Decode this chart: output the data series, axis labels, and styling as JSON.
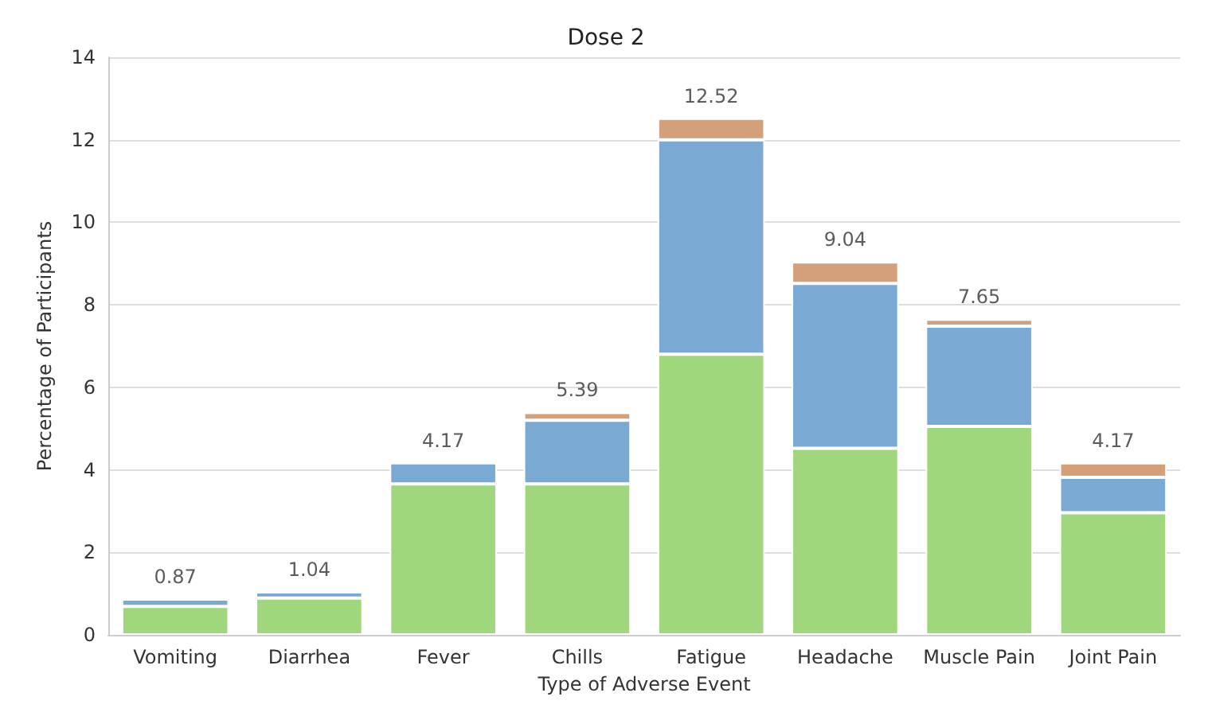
{
  "chart_data": {
    "type": "bar",
    "title": "Dose 2",
    "xlabel": "Type of Adverse Event",
    "ylabel": "Percentage of Participants",
    "categories": [
      "Vomiting",
      "Diarrhea",
      "Fever",
      "Chills",
      "Fatigue",
      "Headache",
      "Muscle Pain",
      "Joint Pain"
    ],
    "stacked": true,
    "series": [
      {
        "color": "#a0d67c",
        "values": [
          0.69,
          0.89,
          3.66,
          3.66,
          6.8,
          4.52,
          5.05,
          2.96
        ]
      },
      {
        "color": "#7aa9d4",
        "values": [
          0.18,
          0.15,
          0.51,
          1.54,
          5.2,
          4.0,
          2.43,
          0.86
        ]
      },
      {
        "color": "#d4a07a",
        "values": [
          null,
          null,
          null,
          0.19,
          0.52,
          0.52,
          0.17,
          0.35
        ]
      }
    ],
    "totals": [
      "0.87",
      "1.04",
      "4.17",
      "5.39",
      "12.52",
      "9.04",
      "7.65",
      "4.17"
    ],
    "ylim": [
      0,
      14
    ],
    "yticks": [
      0,
      2,
      4,
      6,
      8,
      10,
      12,
      14
    ],
    "grid": "y"
  }
}
